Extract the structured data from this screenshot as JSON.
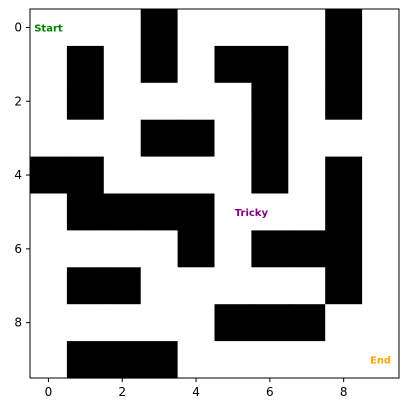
{
  "chart_data": {
    "type": "heatmap",
    "rows": 10,
    "cols": 10,
    "grid": [
      [
        0,
        0,
        0,
        1,
        0,
        0,
        0,
        0,
        1,
        0
      ],
      [
        0,
        1,
        0,
        1,
        0,
        1,
        1,
        0,
        1,
        0
      ],
      [
        0,
        1,
        0,
        0,
        0,
        0,
        1,
        0,
        1,
        0
      ],
      [
        0,
        0,
        0,
        1,
        1,
        0,
        1,
        0,
        0,
        0
      ],
      [
        1,
        1,
        0,
        0,
        0,
        0,
        1,
        0,
        1,
        0
      ],
      [
        0,
        1,
        1,
        1,
        1,
        0,
        0,
        0,
        1,
        0
      ],
      [
        0,
        0,
        0,
        0,
        1,
        0,
        1,
        1,
        1,
        0
      ],
      [
        0,
        1,
        1,
        0,
        0,
        0,
        0,
        0,
        1,
        0
      ],
      [
        0,
        0,
        0,
        0,
        0,
        1,
        1,
        1,
        0,
        0
      ],
      [
        0,
        1,
        1,
        1,
        0,
        0,
        0,
        0,
        0,
        0
      ]
    ],
    "wall_color": "#000000",
    "path_color": "#ffffff",
    "x_ticks": [
      0,
      2,
      4,
      6,
      8
    ],
    "y_ticks": [
      0,
      2,
      4,
      6,
      8
    ],
    "xlim": [
      -0.5,
      9.5
    ],
    "ylim": [
      9.5,
      -0.5
    ],
    "grid_lines": false,
    "annotations": [
      {
        "text": "Start",
        "x": 0,
        "y": 0,
        "color": "#008000"
      },
      {
        "text": "Tricky",
        "x": 5.5,
        "y": 5,
        "color": "#800080"
      },
      {
        "text": "End",
        "x": 9,
        "y": 9,
        "color": "#ffa500"
      }
    ]
  }
}
